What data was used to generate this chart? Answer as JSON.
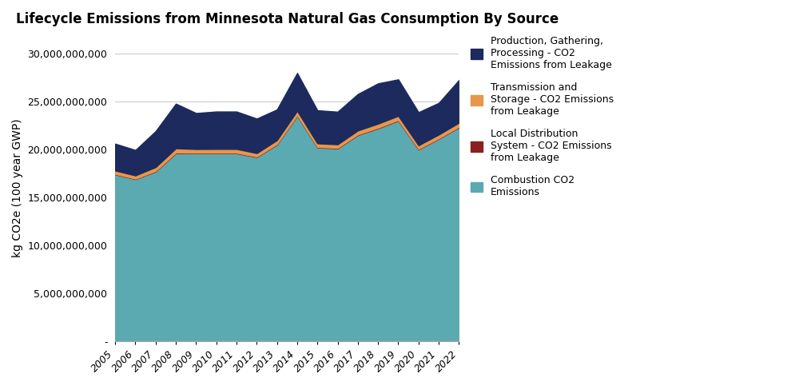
{
  "years": [
    2005,
    2006,
    2007,
    2008,
    2009,
    2010,
    2011,
    2012,
    2013,
    2014,
    2015,
    2016,
    2017,
    2018,
    2019,
    2020,
    2021,
    2022
  ],
  "combustion_co2": [
    17400000000,
    16900000000,
    17700000000,
    19600000000,
    19600000000,
    19600000000,
    19600000000,
    19200000000,
    20500000000,
    23500000000,
    20200000000,
    20100000000,
    21500000000,
    22200000000,
    23000000000,
    20000000000,
    21100000000,
    22300000000
  ],
  "local_dist": [
    50000000,
    50000000,
    60000000,
    70000000,
    60000000,
    60000000,
    60000000,
    55000000,
    65000000,
    70000000,
    60000000,
    60000000,
    65000000,
    65000000,
    70000000,
    60000000,
    60000000,
    65000000
  ],
  "transmission_storage": [
    350000000,
    340000000,
    400000000,
    450000000,
    380000000,
    390000000,
    390000000,
    360000000,
    400000000,
    450000000,
    370000000,
    370000000,
    410000000,
    420000000,
    430000000,
    370000000,
    390000000,
    420000000
  ],
  "production_gathering": [
    2800000000,
    2650000000,
    3750000000,
    4650000000,
    3750000000,
    3900000000,
    3900000000,
    3600000000,
    3200000000,
    3950000000,
    3450000000,
    3400000000,
    3800000000,
    4200000000,
    3800000000,
    3450000000,
    3300000000,
    4450000000
  ],
  "color_combustion": "#5BAAB2",
  "color_local_dist": "#8B2020",
  "color_transmission": "#E8974A",
  "color_production": "#1C2A5E",
  "title": "Lifecycle Emissions from Minnesota Natural Gas Consumption By Source",
  "ylabel": "kg CO2e (100 year GWP)",
  "ylim_max": 32000000000,
  "legend_labels": [
    "Production, Gathering,\nProcessing - CO2\nEmissions from Leakage",
    "Transmission and\nStorage - CO2 Emissions\nfrom Leakage",
    "Local Distribution\nSystem - CO2 Emissions\nfrom Leakage",
    "Combustion CO2\nEmissions"
  ],
  "yticks": [
    0,
    5000000000,
    10000000000,
    15000000000,
    20000000000,
    25000000000,
    30000000000
  ],
  "ytick_labels": [
    "-",
    "5,000,000,000",
    "10,000,000,000",
    "15,000,000,000",
    "20,000,000,000",
    "25,000,000,000",
    "30,000,000,000"
  ]
}
